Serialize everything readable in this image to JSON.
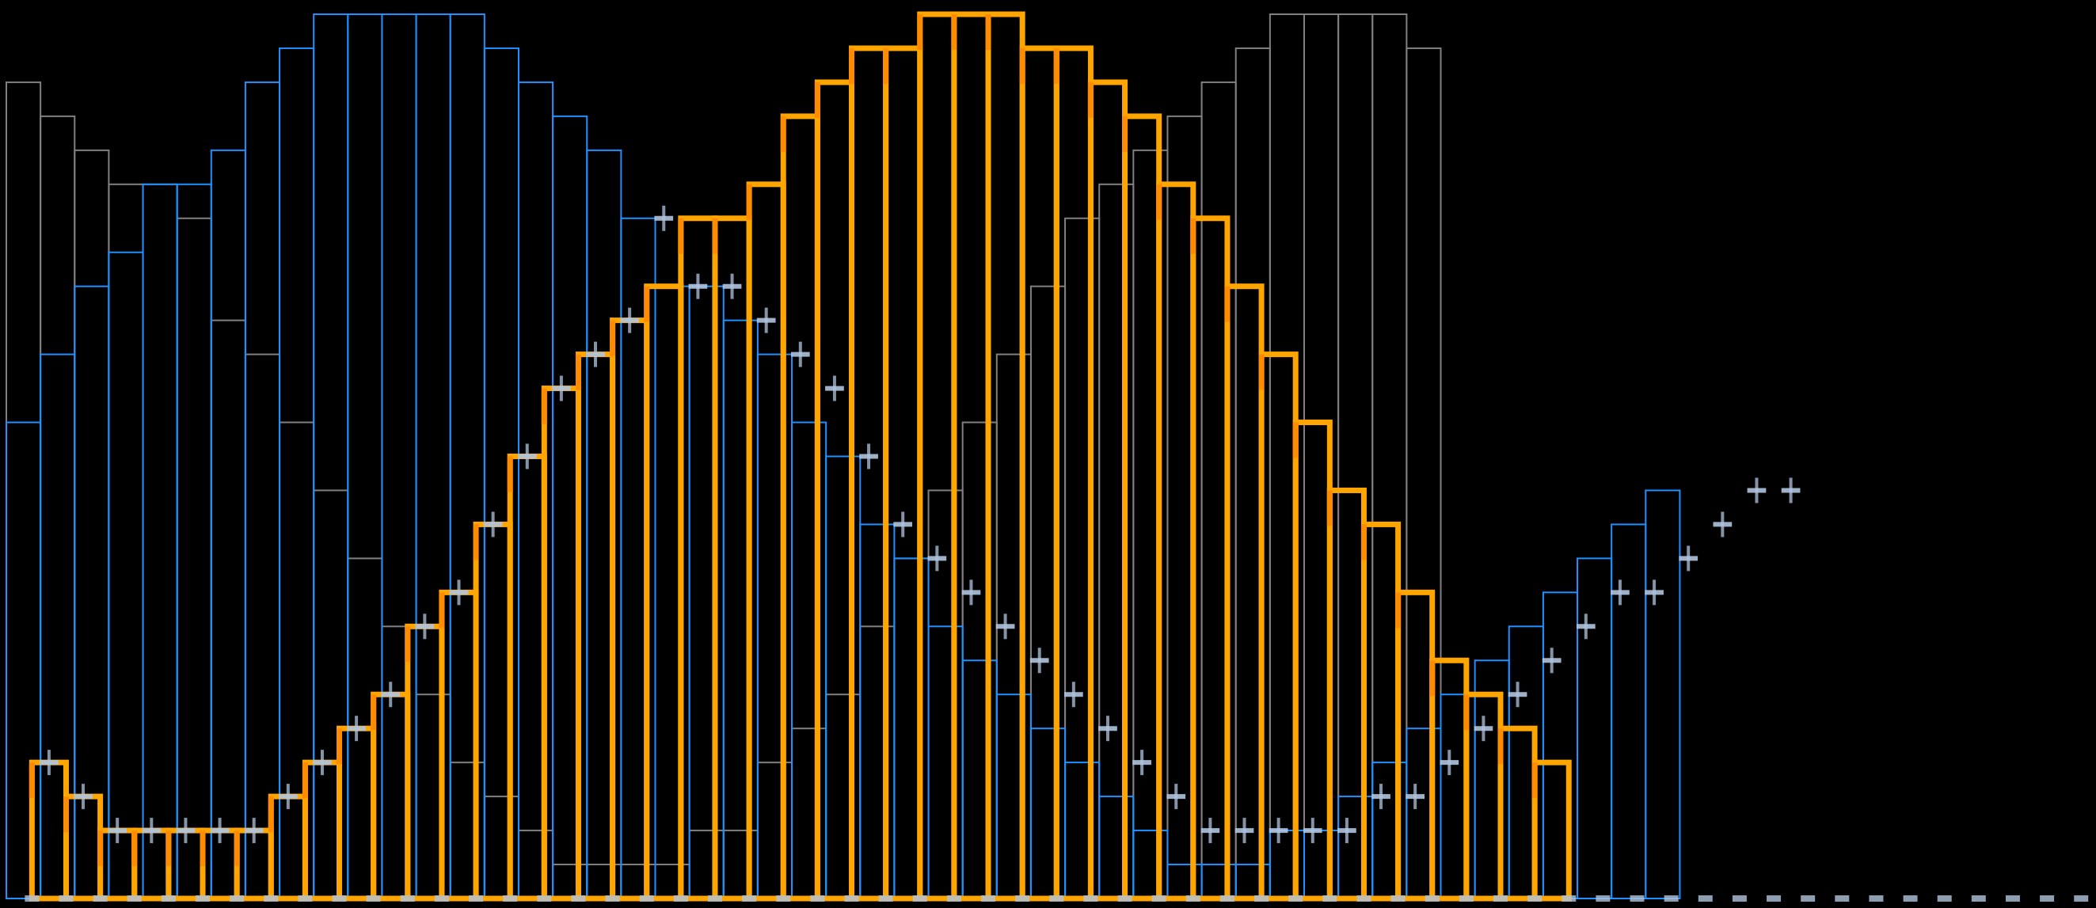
{
  "chart_data": {
    "type": "bar",
    "title": "",
    "xlabel": "",
    "ylabel": "",
    "x_range": [
      0,
      61
    ],
    "ylim": [
      0,
      26
    ],
    "grid": false,
    "legend": "none",
    "background": "#000000",
    "series": [
      {
        "name": "",
        "color": "#808080",
        "style": "thin-step-bars",
        "x_start": 0,
        "values": [
          24,
          23,
          22,
          21,
          21,
          20,
          17,
          16,
          14,
          12,
          10,
          8,
          6,
          4,
          3,
          2,
          1,
          1,
          1,
          1,
          2,
          2,
          4,
          5,
          6,
          8,
          10,
          12,
          14,
          16,
          18,
          20,
          21,
          22,
          23,
          24,
          25,
          26,
          26,
          26,
          26,
          25
        ]
      },
      {
        "name": "",
        "color": "#1E90FF",
        "style": "thin-step-bars",
        "x_start": 0,
        "values": [
          14,
          16,
          18,
          19,
          21,
          21,
          22,
          24,
          25,
          26,
          26,
          26,
          26,
          26,
          25,
          24,
          23,
          22,
          20,
          18,
          18,
          17,
          16,
          14,
          13,
          11,
          10,
          8,
          7,
          6,
          5,
          4,
          3,
          2,
          1,
          1,
          1,
          2,
          2,
          3,
          4,
          5,
          6,
          7,
          8,
          9,
          10,
          11,
          12
        ]
      },
      {
        "name": "",
        "color": "#FFA500",
        "edge_color": "#FF8C00",
        "style": "thick-step-bars",
        "x_start": 0.75,
        "values": [
          4,
          3,
          2,
          2,
          2,
          2,
          2,
          3,
          4,
          5,
          6,
          8,
          9,
          11,
          13,
          15,
          16,
          17,
          18,
          20,
          20,
          21,
          23,
          24,
          25,
          25,
          26,
          26,
          26,
          25,
          25,
          24,
          23,
          21,
          20,
          18,
          16,
          14,
          12,
          11,
          9,
          7,
          6,
          5,
          4
        ]
      },
      {
        "name": "",
        "color": "#B0C4DE",
        "style": "error-ticks",
        "x_start": 0.75,
        "values": [
          4,
          3,
          2,
          2,
          2,
          2,
          2,
          3,
          4,
          5,
          6,
          8,
          9,
          11,
          13,
          15,
          16,
          17,
          20,
          18,
          18,
          17,
          16,
          15,
          13,
          11,
          10,
          9,
          8,
          7,
          6,
          5,
          4,
          3,
          2,
          2,
          2,
          2,
          2,
          3,
          3,
          4,
          5,
          6,
          7,
          8,
          9,
          9,
          10,
          11,
          12,
          12
        ]
      }
    ]
  }
}
